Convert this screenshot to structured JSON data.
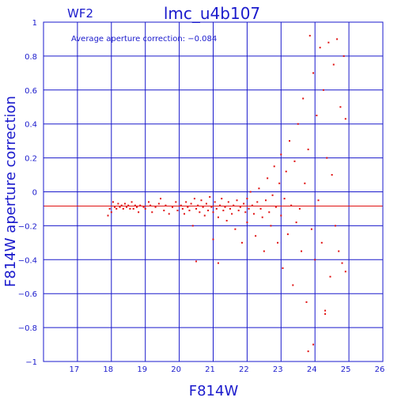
{
  "chart_data": {
    "type": "scatter",
    "panel_label": "WF2",
    "title": "lmc_u4b107",
    "xlabel": "F814W",
    "ylabel": "F814W aperture correction",
    "annotation": "Average aperture correction: −0.084",
    "xlim": [
      16,
      26
    ],
    "ylim": [
      -1,
      1
    ],
    "x_ticks": [
      17,
      18,
      19,
      20,
      21,
      22,
      23,
      24,
      25,
      26
    ],
    "y_ticks": [
      1,
      0.8,
      0.6,
      0.4,
      0.2,
      0,
      -0.2,
      -0.4,
      -0.6,
      -0.8,
      -1
    ],
    "x_tick_labels": [
      "17",
      "18",
      "19",
      "20",
      "21",
      "22",
      "23",
      "24",
      "25",
      "26"
    ],
    "y_tick_labels": [
      "1",
      "0.8",
      "0.6",
      "0.4",
      "0.2",
      "0",
      "−0.2",
      "−0.4",
      "−0.6",
      "−0.8",
      "−1"
    ],
    "grid": true,
    "reference_line": {
      "y": -0.084
    },
    "colors": {
      "axes": "#1a1acc",
      "points": "#e01010",
      "reference_line": "#e01010"
    },
    "points": [
      [
        17.9,
        -0.14
      ],
      [
        17.95,
        -0.1
      ],
      [
        18.0,
        -0.12
      ],
      [
        18.05,
        -0.06
      ],
      [
        18.1,
        -0.09
      ],
      [
        18.15,
        -0.1
      ],
      [
        18.2,
        -0.07
      ],
      [
        18.25,
        -0.09
      ],
      [
        18.3,
        -0.08
      ],
      [
        18.35,
        -0.1
      ],
      [
        18.4,
        -0.07
      ],
      [
        18.45,
        -0.09
      ],
      [
        18.5,
        -0.08
      ],
      [
        18.55,
        -0.1
      ],
      [
        18.6,
        -0.06
      ],
      [
        18.65,
        -0.1
      ],
      [
        18.7,
        -0.08
      ],
      [
        18.75,
        -0.09
      ],
      [
        18.8,
        -0.12
      ],
      [
        18.85,
        -0.08
      ],
      [
        18.95,
        -0.09
      ],
      [
        19.0,
        -0.1
      ],
      [
        19.1,
        -0.06
      ],
      [
        19.15,
        -0.08
      ],
      [
        19.2,
        -0.12
      ],
      [
        19.3,
        -0.09
      ],
      [
        19.4,
        -0.07
      ],
      [
        19.45,
        -0.04
      ],
      [
        19.55,
        -0.11
      ],
      [
        19.6,
        -0.08
      ],
      [
        19.7,
        -0.13
      ],
      [
        19.8,
        -0.09
      ],
      [
        19.9,
        -0.06
      ],
      [
        19.95,
        -0.11
      ],
      [
        20.05,
        -0.08
      ],
      [
        20.1,
        -0.1
      ],
      [
        20.15,
        -0.13
      ],
      [
        20.2,
        -0.06
      ],
      [
        20.25,
        -0.09
      ],
      [
        20.3,
        -0.11
      ],
      [
        20.35,
        -0.07
      ],
      [
        20.4,
        -0.2
      ],
      [
        20.45,
        -0.04
      ],
      [
        20.5,
        -0.1
      ],
      [
        20.5,
        -0.41
      ],
      [
        20.55,
        -0.08
      ],
      [
        20.6,
        -0.12
      ],
      [
        20.65,
        -0.05
      ],
      [
        20.7,
        -0.09
      ],
      [
        20.75,
        -0.14
      ],
      [
        20.8,
        -0.07
      ],
      [
        20.85,
        -0.11
      ],
      [
        20.9,
        -0.03
      ],
      [
        20.95,
        -0.09
      ],
      [
        21.0,
        -0.12
      ],
      [
        21.0,
        -0.28
      ],
      [
        21.05,
        -0.06
      ],
      [
        21.1,
        -0.1
      ],
      [
        21.15,
        -0.15
      ],
      [
        21.15,
        -0.42
      ],
      [
        21.2,
        -0.08
      ],
      [
        21.25,
        -0.04
      ],
      [
        21.3,
        -0.11
      ],
      [
        21.35,
        -0.09
      ],
      [
        21.4,
        -0.17
      ],
      [
        21.45,
        -0.06
      ],
      [
        21.5,
        -0.1
      ],
      [
        21.55,
        -0.13
      ],
      [
        21.6,
        -0.08
      ],
      [
        21.65,
        -0.22
      ],
      [
        21.7,
        -0.05
      ],
      [
        21.75,
        -0.11
      ],
      [
        21.8,
        -0.09
      ],
      [
        21.85,
        -0.3
      ],
      [
        21.9,
        -0.07
      ],
      [
        21.95,
        -0.12
      ],
      [
        22.0,
        -0.04
      ],
      [
        22.0,
        -0.18
      ],
      [
        22.05,
        -0.1
      ],
      [
        22.1,
        0.0
      ],
      [
        22.15,
        -0.08
      ],
      [
        22.2,
        -0.13
      ],
      [
        22.25,
        -0.26
      ],
      [
        22.3,
        -0.06
      ],
      [
        22.35,
        0.02
      ],
      [
        22.4,
        -0.1
      ],
      [
        22.45,
        -0.15
      ],
      [
        22.5,
        -0.35
      ],
      [
        22.55,
        -0.05
      ],
      [
        22.6,
        0.08
      ],
      [
        22.65,
        -0.12
      ],
      [
        22.7,
        -0.2
      ],
      [
        22.75,
        -0.02
      ],
      [
        22.8,
        0.15
      ],
      [
        22.85,
        -0.09
      ],
      [
        22.9,
        -0.3
      ],
      [
        22.95,
        0.05
      ],
      [
        23.0,
        -0.14
      ],
      [
        23.0,
        0.22
      ],
      [
        23.05,
        -0.45
      ],
      [
        23.1,
        -0.04
      ],
      [
        23.15,
        0.12
      ],
      [
        23.2,
        -0.25
      ],
      [
        23.25,
        0.3
      ],
      [
        23.3,
        -0.08
      ],
      [
        23.35,
        -0.55
      ],
      [
        23.4,
        0.18
      ],
      [
        23.45,
        -0.18
      ],
      [
        23.5,
        0.4
      ],
      [
        23.55,
        -0.1
      ],
      [
        23.6,
        -0.35
      ],
      [
        23.65,
        0.55
      ],
      [
        23.7,
        0.05
      ],
      [
        23.75,
        -0.65
      ],
      [
        23.8,
        0.25
      ],
      [
        23.85,
        0.92
      ],
      [
        23.9,
        -0.22
      ],
      [
        23.95,
        0.7
      ],
      [
        24.0,
        -0.4
      ],
      [
        24.05,
        0.45
      ],
      [
        24.1,
        -0.05
      ],
      [
        24.15,
        0.85
      ],
      [
        24.2,
        -0.3
      ],
      [
        24.25,
        0.6
      ],
      [
        24.3,
        -0.7
      ],
      [
        24.35,
        0.2
      ],
      [
        24.4,
        0.88
      ],
      [
        24.45,
        -0.5
      ],
      [
        24.5,
        0.1
      ],
      [
        24.55,
        0.75
      ],
      [
        24.6,
        -0.2
      ],
      [
        24.65,
        0.9
      ],
      [
        24.7,
        -0.35
      ],
      [
        24.75,
        0.5
      ],
      [
        24.8,
        -0.42
      ],
      [
        24.85,
        0.8
      ],
      [
        24.9,
        -0.47
      ],
      [
        24.9,
        0.43
      ],
      [
        23.95,
        -0.9
      ],
      [
        23.8,
        -0.94
      ],
      [
        24.3,
        -0.72
      ]
    ]
  }
}
